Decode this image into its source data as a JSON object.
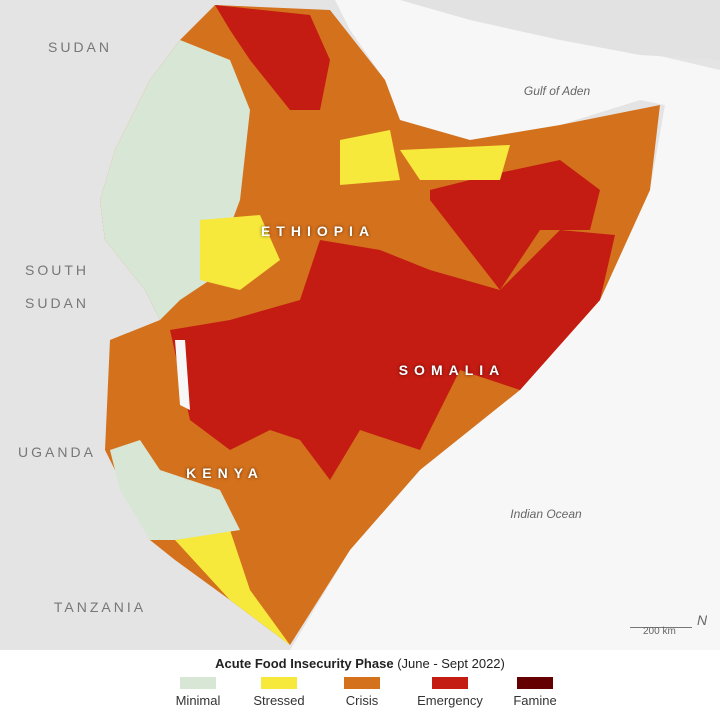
{
  "labels": {
    "sudan": "SUDAN",
    "south_sudan_1": "SOUTH",
    "south_sudan_2": "SUDAN",
    "ethiopia": "ETHIOPIA",
    "somalia": "SOMALIA",
    "kenya": "KENYA",
    "uganda": "UGANDA",
    "tanzania": "TANZANIA",
    "gulf": "Gulf of Aden",
    "ocean": "Indian Ocean"
  },
  "scale": {
    "label": "200 km",
    "north": "N"
  },
  "legend": {
    "title": "Acute Food Insecurity Phase",
    "subtitle": "(June - Sept 2022)",
    "items": [
      {
        "label": "Minimal",
        "color": "#d8e6d6"
      },
      {
        "label": "Stressed",
        "color": "#f7e83c"
      },
      {
        "label": "Crisis",
        "color": "#d4711c"
      },
      {
        "label": "Emergency",
        "color": "#c41b12"
      },
      {
        "label": "Famine",
        "color": "#650000"
      }
    ]
  }
}
